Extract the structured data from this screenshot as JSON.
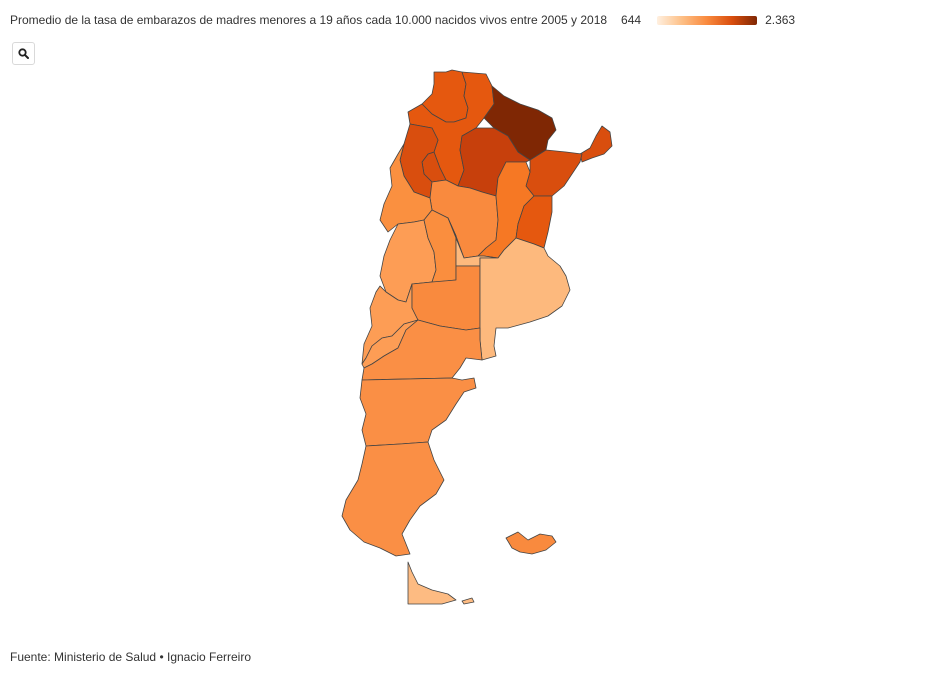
{
  "header": {
    "title": "Promedio de la tasa de embarazos de madres menores a 19 años cada 10.000 nacidos vivos entre 2005 y 2018",
    "legend_min": "644",
    "legend_max": "2.363"
  },
  "toolbar": {
    "zoom_icon": "search-icon"
  },
  "footer": {
    "source": "Fuente: Ministerio de Salud",
    "separator": "•",
    "author": "Ignacio Ferreiro"
  },
  "colors": {
    "scale_low": "#fff0e0",
    "scale_high": "#7f2704",
    "stroke": "#444444"
  }
}
